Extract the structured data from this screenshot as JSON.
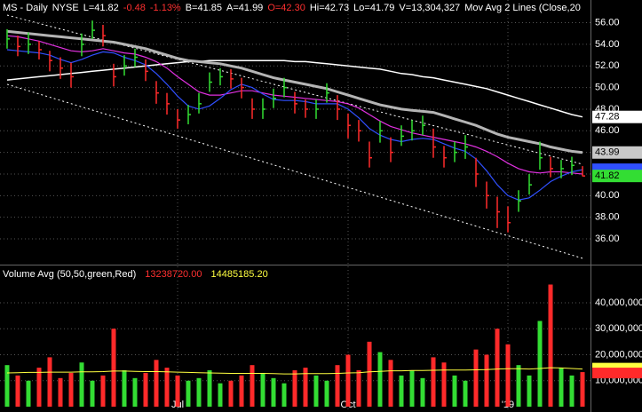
{
  "chart_data": [
    {
      "type": "ohlc",
      "header": [
        {
          "text": "MS - Daily",
          "color": "#ffffff"
        },
        {
          "text": "NYSE",
          "color": "#ffffff"
        },
        {
          "text": "L=41.82",
          "color": "#ffffff"
        },
        {
          "text": "-0.48",
          "color": "#ff3030"
        },
        {
          "text": "-1.13%",
          "color": "#ff3030"
        },
        {
          "text": "B=41.85",
          "color": "#ffffff"
        },
        {
          "text": "A=41.99",
          "color": "#ffffff"
        },
        {
          "text": "O=42.30",
          "color": "#ff3030"
        },
        {
          "text": "Hi=42.73",
          "color": "#ffffff"
        },
        {
          "text": "Lo=41.79",
          "color": "#ffffff"
        },
        {
          "text": "V=13,304,327",
          "color": "#ffffff"
        },
        {
          "text": "Mov Avg 2 Lines (Close,20",
          "color": "#ffffff"
        }
      ],
      "categories": [
        null,
        null,
        null,
        null,
        null,
        null,
        null,
        null,
        null,
        null,
        null,
        null,
        null,
        null,
        null,
        null,
        "Jul",
        null,
        null,
        null,
        null,
        null,
        null,
        null,
        null,
        null,
        null,
        null,
        null,
        null,
        null,
        null,
        "Oct",
        null,
        null,
        null,
        null,
        null,
        null,
        null,
        null,
        null,
        null,
        null,
        null,
        null,
        null,
        "'19",
        null,
        null,
        null,
        null,
        null,
        null,
        null
      ],
      "up_color": "#33dd33",
      "down_color": "#ff2a2a",
      "high": [
        55.4,
        54.8,
        55.1,
        54.3,
        53.4,
        52.8,
        52.3,
        55.0,
        56.2,
        55.8,
        52.2,
        53.0,
        53.6,
        52.6,
        50.6,
        49.5,
        48.0,
        48.4,
        49.5,
        51.4,
        51.8,
        51.7,
        50.9,
        49.0,
        49.0,
        49.9,
        50.9,
        49.6,
        48.9,
        48.9,
        50.4,
        49.3,
        47.6,
        47.0,
        45.0,
        46.9,
        45.4,
        46.5,
        47.0,
        47.4,
        46.2,
        44.6,
        45.0,
        45.6,
        43.5,
        41.3,
        39.9,
        39.0,
        40.5,
        42.0,
        45.0,
        43.6,
        43.3,
        43.6,
        42.73
      ],
      "low": [
        53.6,
        52.9,
        53.1,
        52.6,
        51.5,
        50.8,
        50.0,
        52.9,
        54.5,
        53.8,
        50.1,
        51.1,
        51.9,
        50.6,
        48.5,
        47.5,
        46.2,
        46.6,
        47.6,
        49.6,
        50.2,
        49.9,
        49.0,
        47.1,
        47.1,
        48.1,
        49.1,
        47.6,
        47.2,
        47.1,
        48.6,
        47.0,
        45.3,
        45.0,
        42.6,
        44.9,
        43.1,
        44.6,
        45.1,
        45.6,
        43.5,
        42.6,
        43.1,
        43.4,
        40.8,
        38.8,
        37.0,
        36.6,
        38.5,
        40.1,
        42.4,
        41.7,
        41.6,
        41.9,
        41.79
      ],
      "close": [
        54.5,
        53.8,
        54.0,
        53.5,
        52.5,
        51.8,
        51.0,
        54.0,
        55.3,
        54.8,
        51.0,
        52.0,
        52.8,
        51.5,
        49.5,
        48.5,
        47.0,
        47.5,
        48.5,
        50.5,
        51.0,
        50.8,
        50.0,
        48.0,
        48.0,
        49.0,
        50.0,
        48.5,
        48.0,
        48.0,
        49.5,
        48.0,
        46.5,
        46.0,
        43.5,
        46.0,
        44.0,
        45.5,
        46.0,
        46.5,
        44.5,
        43.5,
        44.0,
        44.5,
        42.0,
        40.0,
        38.5,
        37.5,
        39.5,
        41.0,
        43.5,
        42.5,
        42.5,
        42.8,
        41.82
      ],
      "series": [
        {
          "color": "#ffffff",
          "width": 1.5,
          "label_bg": "#ffffff",
          "label_fg": "#000000",
          "values": [
            50.7,
            50.8,
            50.9,
            51.0,
            51.1,
            51.2,
            51.3,
            51.4,
            51.5,
            51.6,
            51.7,
            51.8,
            51.9,
            52.0,
            52.1,
            52.2,
            52.3,
            52.4,
            52.4,
            52.5,
            52.5,
            52.5,
            52.5,
            52.5,
            52.5,
            52.5,
            52.5,
            52.4,
            52.4,
            52.3,
            52.2,
            52.1,
            52.0,
            51.9,
            51.8,
            51.7,
            51.5,
            51.3,
            51.2,
            51.0,
            50.9,
            50.7,
            50.5,
            50.3,
            50.1,
            49.9,
            49.6,
            49.3,
            49.0,
            48.7,
            48.4,
            48.1,
            47.8,
            47.5,
            47.28
          ]
        },
        {
          "color": "#b4b4b4",
          "width": 3,
          "label_bg": "#c8c8c8",
          "label_fg": "#000000",
          "values": [
            55.2,
            55.1,
            55.0,
            54.9,
            54.8,
            54.7,
            54.6,
            54.5,
            54.4,
            54.3,
            54.2,
            54.0,
            53.8,
            53.6,
            53.3,
            53.0,
            52.7,
            52.5,
            52.4,
            52.3,
            52.2,
            52.0,
            51.8,
            51.5,
            51.2,
            50.9,
            50.7,
            50.5,
            50.3,
            50.1,
            49.9,
            49.6,
            49.3,
            49.0,
            48.7,
            48.4,
            48.2,
            48.0,
            47.9,
            47.8,
            47.7,
            47.4,
            47.1,
            46.8,
            46.5,
            46.1,
            45.7,
            45.4,
            45.2,
            45.0,
            44.8,
            44.5,
            44.3,
            44.1,
            43.99
          ]
        },
        {
          "color": "#e030e0",
          "width": 1.2,
          "values": [
            54.8,
            54.7,
            54.5,
            54.3,
            54.0,
            53.7,
            53.4,
            53.3,
            53.4,
            53.6,
            53.4,
            53.2,
            53.1,
            52.8,
            52.4,
            51.8,
            51.0,
            50.3,
            49.6,
            49.3,
            49.3,
            49.5,
            49.7,
            49.7,
            49.5,
            49.3,
            49.2,
            49.1,
            49.0,
            48.9,
            48.8,
            48.7,
            48.5,
            48.1,
            47.5,
            46.9,
            46.4,
            46.1,
            45.8,
            45.6,
            45.4,
            45.2,
            45.0,
            44.8,
            44.5,
            44.1,
            43.6,
            43.0,
            42.5,
            42.2,
            42.1,
            42.2,
            42.2,
            42.1,
            42.0
          ]
        },
        {
          "color": "#3050ff",
          "width": 1.2,
          "values": [
            53.5,
            53.4,
            53.3,
            53.2,
            53.0,
            52.6,
            52.3,
            52.6,
            53.0,
            53.3,
            53.2,
            52.8,
            52.5,
            52.1,
            51.3,
            50.3,
            49.2,
            48.3,
            48.0,
            48.3,
            49.0,
            49.8,
            50.3,
            50.0,
            49.4,
            48.9,
            48.8,
            48.8,
            48.7,
            48.5,
            48.5,
            48.5,
            48.0,
            47.2,
            46.2,
            45.6,
            45.2,
            45.0,
            45.2,
            45.3,
            45.2,
            44.8,
            44.4,
            44.1,
            43.4,
            42.3,
            41.0,
            40.0,
            39.6,
            39.8,
            40.5,
            41.3,
            41.8,
            42.2,
            42.4
          ]
        }
      ],
      "trendlines": [
        {
          "values": [
            56.7,
            42.9
          ]
        },
        {
          "values": [
            50.3,
            34.2
          ]
        }
      ],
      "ylim": [
        33.7,
        58.1
      ],
      "yticks": [
        {
          "value": 36,
          "label": "36.00"
        },
        {
          "value": 38,
          "label": "38.00"
        },
        {
          "value": 40,
          "label": "40.00"
        },
        {
          "value": 42,
          "label": "42.00"
        },
        {
          "value": 44,
          "label": "44.00"
        },
        {
          "value": 46,
          "label": "46.00"
        },
        {
          "value": 48,
          "label": "48.00"
        },
        {
          "value": 50,
          "label": "50.00"
        },
        {
          "value": 52,
          "label": "52.00"
        },
        {
          "value": 54,
          "label": "54.00"
        },
        {
          "value": 56,
          "label": "56.00"
        }
      ],
      "grid": true
    },
    {
      "type": "bar",
      "title": "Volume Avg (50,50,green,Red)",
      "annotations": [
        {
          "text": "13238720.00",
          "color": "#ff3030"
        },
        {
          "text": "14485185.20",
          "color": "#ffff40"
        }
      ],
      "values": [
        16000000,
        12000000,
        10000000,
        15000000,
        19000000,
        11000000,
        13000000,
        17000000,
        10000000,
        12000000,
        30000000,
        14000000,
        11000000,
        13000000,
        18000000,
        15000000,
        12000000,
        10000000,
        11000000,
        14000000,
        9000000,
        10000000,
        12000000,
        16000000,
        13000000,
        11000000,
        9000000,
        14000000,
        15000000,
        12000000,
        10000000,
        16000000,
        20000000,
        14000000,
        25000000,
        21000000,
        18000000,
        12000000,
        14000000,
        11000000,
        19000000,
        17000000,
        12000000,
        10000000,
        22000000,
        20000000,
        30000000,
        24000000,
        16000000,
        12000000,
        33000000,
        47000000,
        15000000,
        12000000,
        13304327
      ],
      "avg_color": "#ffff40",
      "avg_values": [
        13000000,
        13100000,
        13200000,
        13200000,
        13300000,
        13300000,
        13300000,
        13400000,
        13400000,
        13500000,
        13700000,
        13700000,
        13600000,
        13500000,
        13500000,
        13400000,
        13300000,
        13200000,
        13100000,
        13000000,
        12900000,
        12800000,
        12800000,
        12800000,
        12800000,
        12700000,
        12600000,
        12600000,
        12700000,
        12700000,
        12700000,
        12800000,
        13000000,
        13100000,
        13400000,
        13600000,
        13800000,
        13800000,
        13900000,
        13900000,
        14000000,
        14100000,
        14100000,
        14100000,
        14200000,
        14300000,
        14500000,
        14600000,
        14600000,
        14500000,
        14700000,
        15000000,
        14900000,
        14700000,
        14485185.2
      ],
      "ylim": [
        0,
        54000000
      ],
      "yticks": [
        {
          "value": 10000000,
          "label": "10,000,000"
        },
        {
          "value": 20000000,
          "label": "20,000,000"
        },
        {
          "value": 30000000,
          "label": "30,000,000"
        },
        {
          "value": 40000000,
          "label": "40,000,000"
        }
      ],
      "grid": true
    }
  ]
}
